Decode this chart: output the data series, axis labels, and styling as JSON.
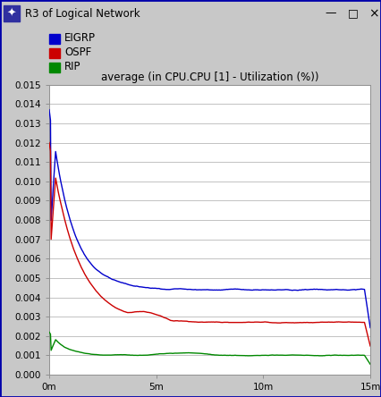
{
  "title": "average (in CPU.CPU [1] - Utilization (%))",
  "window_title": "R3 of Logical Network",
  "xlim": [
    0,
    900
  ],
  "ylim": [
    0.0,
    0.015
  ],
  "xtick_positions": [
    0,
    300,
    600,
    900
  ],
  "xtick_labels": [
    "0m",
    "5m",
    "10m",
    "15m"
  ],
  "ytick_positions": [
    0.0,
    0.001,
    0.002,
    0.003,
    0.004,
    0.005,
    0.006,
    0.007,
    0.008,
    0.009,
    0.01,
    0.011,
    0.012,
    0.013,
    0.014,
    0.015
  ],
  "background_color": "#c8c8c8",
  "plot_bg_color": "#ffffff",
  "grid_color": "#b8b8b8",
  "eigrp_color": "#0000cc",
  "ospf_color": "#cc0000",
  "rip_color": "#008800",
  "legend_labels": [
    "EIGRP",
    "OSPF",
    "RIP"
  ],
  "title_fontsize": 8.5,
  "tick_fontsize": 7.5,
  "legend_fontsize": 8.5,
  "titlebar_color": "#d4d0c8",
  "titlebar_text_color": "#000000",
  "border_color": "#0000aa"
}
